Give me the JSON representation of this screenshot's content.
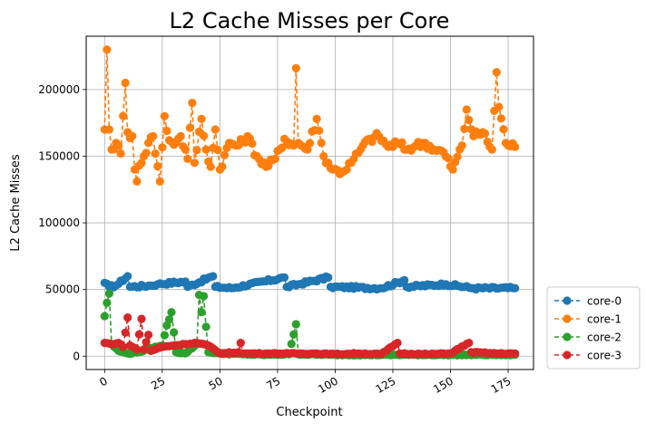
{
  "chart_data": {
    "type": "line",
    "title": "L2 Cache Misses per Core",
    "xlabel": "Checkpoint",
    "ylabel": "L2 Cache Misses",
    "xlim": [
      -8,
      186
    ],
    "ylim": [
      -10000,
      240000
    ],
    "x_ticks": [
      0,
      25,
      50,
      75,
      100,
      125,
      150,
      175
    ],
    "x_tick_labels": [
      "0",
      "25",
      "50",
      "75",
      "100",
      "125",
      "150",
      "175"
    ],
    "y_ticks": [
      0,
      50000,
      100000,
      150000,
      200000
    ],
    "y_tick_labels": [
      "0",
      "50000",
      "100000",
      "150000",
      "200000"
    ],
    "grid": true,
    "legend_position": "outside-bottom-right",
    "series": [
      {
        "name": "core-0",
        "color": "#1f77b4",
        "keypoints": [
          [
            0,
            55000
          ],
          [
            2,
            52000
          ],
          [
            5,
            53000
          ],
          [
            10,
            60000
          ],
          [
            11,
            52000
          ],
          [
            20,
            53000
          ],
          [
            23,
            54000
          ],
          [
            35,
            56000
          ],
          [
            36,
            52000
          ],
          [
            47,
            60000
          ],
          [
            48,
            52000
          ],
          [
            55,
            51000
          ],
          [
            78,
            59000
          ],
          [
            79,
            52000
          ],
          [
            97,
            59000
          ],
          [
            98,
            52000
          ],
          [
            120,
            51000
          ],
          [
            130,
            57000
          ],
          [
            131,
            52000
          ],
          [
            148,
            54000
          ],
          [
            160,
            51000
          ],
          [
            178,
            51000
          ]
        ]
      },
      {
        "name": "core-1",
        "color": "#ff7f0e",
        "keypoints": [
          [
            0,
            170000
          ],
          [
            1,
            230000
          ],
          [
            2,
            170000
          ],
          [
            3,
            155000
          ],
          [
            5,
            160000
          ],
          [
            7,
            152000
          ],
          [
            9,
            205000
          ],
          [
            10,
            168000
          ],
          [
            12,
            165000
          ],
          [
            13,
            140000
          ],
          [
            14,
            131000
          ],
          [
            15,
            143000
          ],
          [
            17,
            150000
          ],
          [
            19,
            160000
          ],
          [
            21,
            165000
          ],
          [
            24,
            131000
          ],
          [
            26,
            180000
          ],
          [
            28,
            162000
          ],
          [
            31,
            160000
          ],
          [
            33,
            165000
          ],
          [
            36,
            148000
          ],
          [
            38,
            190000
          ],
          [
            39,
            145000
          ],
          [
            42,
            178000
          ],
          [
            44,
            155000
          ],
          [
            46,
            142000
          ],
          [
            48,
            170000
          ],
          [
            50,
            140000
          ],
          [
            54,
            160000
          ],
          [
            58,
            158000
          ],
          [
            62,
            165000
          ],
          [
            66,
            150000
          ],
          [
            70,
            142000
          ],
          [
            74,
            148000
          ],
          [
            78,
            163000
          ],
          [
            82,
            158000
          ],
          [
            83,
            216000
          ],
          [
            84,
            160000
          ],
          [
            88,
            155000
          ],
          [
            92,
            178000
          ],
          [
            95,
            150000
          ],
          [
            99,
            140000
          ],
          [
            103,
            138000
          ],
          [
            107,
            145000
          ],
          [
            111,
            155000
          ],
          [
            115,
            163000
          ],
          [
            119,
            165000
          ],
          [
            123,
            157000
          ],
          [
            127,
            160000
          ],
          [
            131,
            155000
          ],
          [
            135,
            158000
          ],
          [
            139,
            160000
          ],
          [
            143,
            155000
          ],
          [
            147,
            153000
          ],
          [
            151,
            140000
          ],
          [
            155,
            158000
          ],
          [
            157,
            185000
          ],
          [
            160,
            165000
          ],
          [
            164,
            168000
          ],
          [
            168,
            155000
          ],
          [
            170,
            213000
          ],
          [
            171,
            187000
          ],
          [
            174,
            160000
          ],
          [
            178,
            157000
          ]
        ]
      },
      {
        "name": "core-2",
        "color": "#2ca02c",
        "keypoints": [
          [
            0,
            30000
          ],
          [
            1,
            40000
          ],
          [
            2,
            47000
          ],
          [
            3,
            9000
          ],
          [
            6,
            4000
          ],
          [
            10,
            2000
          ],
          [
            15,
            3000
          ],
          [
            20,
            6000
          ],
          [
            25,
            8000
          ],
          [
            27,
            23000
          ],
          [
            29,
            33000
          ],
          [
            31,
            3000
          ],
          [
            35,
            2000
          ],
          [
            40,
            9000
          ],
          [
            41,
            46000
          ],
          [
            42,
            33000
          ],
          [
            43,
            45000
          ],
          [
            44,
            22000
          ],
          [
            45,
            3000
          ],
          [
            50,
            2000
          ],
          [
            60,
            1500
          ],
          [
            70,
            1000
          ],
          [
            80,
            1500
          ],
          [
            83,
            24000
          ],
          [
            84,
            1500
          ],
          [
            100,
            1000
          ],
          [
            120,
            1000
          ],
          [
            140,
            1000
          ],
          [
            160,
            1000
          ],
          [
            178,
            1000
          ]
        ]
      },
      {
        "name": "core-3",
        "color": "#d62728",
        "keypoints": [
          [
            0,
            10000
          ],
          [
            3,
            9000
          ],
          [
            6,
            10000
          ],
          [
            8,
            7000
          ],
          [
            10,
            29000
          ],
          [
            11,
            8000
          ],
          [
            14,
            5000
          ],
          [
            16,
            28000
          ],
          [
            17,
            5000
          ],
          [
            19,
            16000
          ],
          [
            20,
            4000
          ],
          [
            25,
            7000
          ],
          [
            30,
            8000
          ],
          [
            35,
            9000
          ],
          [
            40,
            10000
          ],
          [
            45,
            8000
          ],
          [
            50,
            2000
          ],
          [
            58,
            3000
          ],
          [
            59,
            10000
          ],
          [
            60,
            2000
          ],
          [
            70,
            2000
          ],
          [
            80,
            2000
          ],
          [
            90,
            2000
          ],
          [
            100,
            1500
          ],
          [
            110,
            2000
          ],
          [
            120,
            1500
          ],
          [
            127,
            10000
          ],
          [
            128,
            2000
          ],
          [
            140,
            1500
          ],
          [
            150,
            2000
          ],
          [
            158,
            10000
          ],
          [
            159,
            3000
          ],
          [
            170,
            2000
          ],
          [
            178,
            2000
          ]
        ]
      }
    ]
  }
}
